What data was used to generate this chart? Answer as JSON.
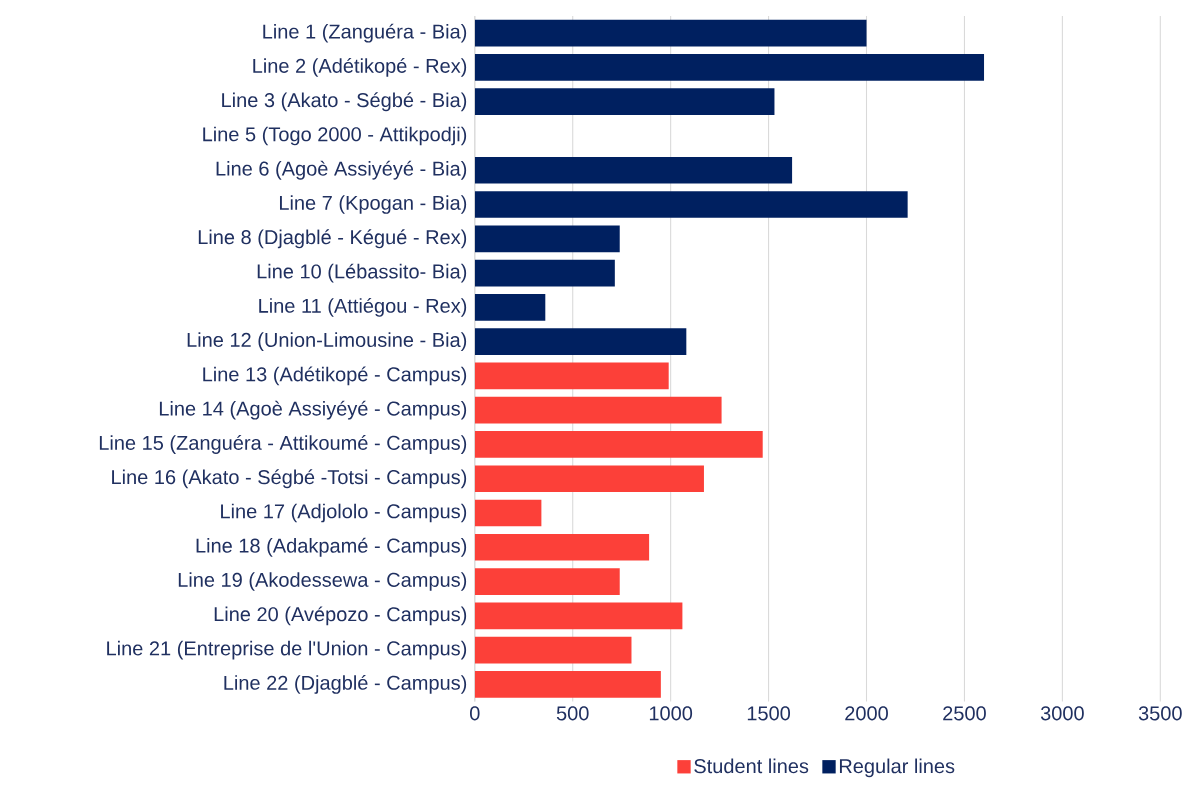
{
  "chart_data": {
    "type": "bar",
    "orientation": "horizontal",
    "categories": [
      "Line 1 (Zanguéra - Bia)",
      "Line 2 (Adétikopé - Rex)",
      "Line 3 (Akato - Ségbé - Bia)",
      "Line 5 (Togo 2000 - Attikpodji)",
      "Line 6 (Agoè Assiyéyé - Bia)",
      "Line 7 (Kpogan - Bia)",
      "Line 8 (Djagblé - Kégué - Rex)",
      "Line 10 (Lébassito- Bia)",
      "Line 11 (Attiégou - Rex)",
      "Line 12 (Union-Limousine - Bia)",
      "Line 13 (Adétikopé - Campus)",
      "Line 14 (Agoè Assiyéyé - Campus)",
      "Line 15 (Zanguéra - Attikoumé - Campus)",
      "Line 16 (Akato - Ségbé -Totsi - Campus)",
      "Line 17 (Adjololo - Campus)",
      "Line 18 (Adakpamé - Campus)",
      "Line 19 (Akodessewa - Campus)",
      "Line 20 (Avépozo - Campus)",
      "Line 21 (Entreprise de l'Union - Campus)",
      "Line 22 (Djagblé - Campus)"
    ],
    "series": [
      {
        "name": "Student lines",
        "color": "#fc4039",
        "values": [
          null,
          null,
          null,
          null,
          null,
          null,
          null,
          null,
          null,
          null,
          990,
          1260,
          1470,
          1170,
          340,
          890,
          740,
          1060,
          800,
          950
        ]
      },
      {
        "name": "Regular lines",
        "color": "#002060",
        "values": [
          2000,
          2600,
          1530,
          null,
          1620,
          2210,
          740,
          715,
          360,
          1080,
          null,
          null,
          null,
          null,
          null,
          null,
          null,
          null,
          null,
          null
        ]
      }
    ],
    "xlim": [
      0,
      3500
    ],
    "xticks": [
      0,
      500,
      1000,
      1500,
      2000,
      2500,
      3000,
      3500
    ],
    "grid": "x",
    "legend": "bottom"
  }
}
